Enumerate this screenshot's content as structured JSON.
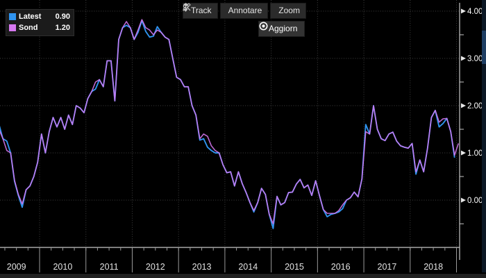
{
  "toolbar": {
    "buttons": [
      {
        "id": "track",
        "label": "Track"
      },
      {
        "id": "annotate",
        "label": "Annotare"
      },
      {
        "id": "zoom",
        "label": "Zoom"
      }
    ],
    "refresh_label": "Aggiorn"
  },
  "legend": {
    "items": [
      {
        "label": "Latest",
        "value": "0.90",
        "color": "#2f94f0"
      },
      {
        "label": "Sond",
        "value": "1.20",
        "color": "#d678f0"
      }
    ]
  },
  "colors": {
    "background": "#000000",
    "grid": "#404040",
    "axis": "#c8c8c8",
    "tick_text": "#ffffff",
    "year_text": "#e2e2e2",
    "separator": "#9a9a9a",
    "latest_line": "#2f94f0",
    "sond_line": "#d678f0"
  },
  "chart_data": {
    "type": "line",
    "title": "",
    "xlabel": "",
    "ylabel": "",
    "legend_position": "top-left",
    "grid": "dotted",
    "x_start_year": 2009,
    "x_tick_labels": [
      "2009",
      "2010",
      "2011",
      "2012",
      "2013",
      "2014",
      "2015",
      "2016",
      "2017",
      "2018"
    ],
    "y_ticks": [
      {
        "value": 4,
        "label": "4.00"
      },
      {
        "value": 3,
        "label": "3.00"
      },
      {
        "value": 2,
        "label": "2.00"
      },
      {
        "value": 1,
        "label": "1.00"
      },
      {
        "value": 0,
        "label": "0.00"
      }
    ],
    "y_minor_values": [
      3.5,
      2.5,
      1.5,
      0.5,
      -0.5
    ],
    "ylim": [
      -1.0,
      4.24
    ],
    "frequency": "monthly",
    "series": [
      {
        "name": "Latest",
        "color": "#2f94f0",
        "start": "2009-01",
        "values": [
          1.65,
          1.6,
          1.3,
          1.25,
          1.0,
          0.4,
          0.1,
          -0.15,
          0.22,
          0.3,
          0.5,
          0.8,
          1.4,
          1.0,
          1.45,
          1.75,
          1.55,
          1.75,
          1.5,
          1.8,
          1.6,
          2.0,
          1.95,
          1.85,
          2.15,
          2.3,
          2.35,
          2.55,
          2.4,
          2.95,
          2.95,
          2.1,
          3.4,
          3.65,
          3.7,
          3.65,
          3.4,
          3.55,
          3.8,
          3.57,
          3.45,
          3.47,
          3.67,
          3.55,
          3.45,
          3.4,
          3.0,
          2.6,
          2.55,
          2.4,
          2.4,
          2.0,
          1.8,
          1.27,
          1.3,
          1.12,
          1.05,
          1.0,
          1.0,
          0.75,
          0.58,
          0.6,
          0.3,
          0.6,
          0.35,
          0.16,
          -0.05,
          -0.25,
          -0.05,
          0.25,
          0.12,
          -0.3,
          -0.6,
          0.08,
          -0.1,
          -0.05,
          0.16,
          0.17,
          0.34,
          0.44,
          0.26,
          0.32,
          0.1,
          0.41,
          0.1,
          -0.2,
          -0.35,
          -0.3,
          -0.28,
          -0.25,
          -0.18,
          0.0,
          0.05,
          0.17,
          0.07,
          0.45,
          1.6,
          1.4,
          2.0,
          1.5,
          1.3,
          1.26,
          1.4,
          1.44,
          1.25,
          1.15,
          1.12,
          1.1,
          1.2,
          0.55,
          0.85,
          0.6,
          1.1,
          1.75,
          1.9,
          1.55,
          1.62,
          1.73,
          1.45,
          0.9
        ]
      },
      {
        "name": "Sond",
        "color": "#d678f0",
        "start": "2009-01",
        "values": [
          1.6,
          1.5,
          1.3,
          1.05,
          1.0,
          0.42,
          0.12,
          -0.08,
          0.22,
          0.3,
          0.5,
          0.8,
          1.4,
          1.0,
          1.45,
          1.75,
          1.55,
          1.75,
          1.5,
          1.8,
          1.6,
          2.0,
          1.95,
          1.85,
          2.15,
          2.3,
          2.5,
          2.55,
          2.4,
          2.95,
          2.95,
          2.1,
          3.4,
          3.65,
          3.78,
          3.65,
          3.4,
          3.6,
          3.82,
          3.65,
          3.6,
          3.5,
          3.6,
          3.55,
          3.45,
          3.4,
          3.0,
          2.6,
          2.55,
          2.4,
          2.4,
          2.0,
          1.8,
          1.3,
          1.4,
          1.35,
          1.15,
          1.05,
          1.0,
          0.75,
          0.58,
          0.6,
          0.3,
          0.6,
          0.35,
          0.16,
          -0.05,
          -0.22,
          -0.05,
          0.25,
          0.12,
          -0.3,
          -0.5,
          0.08,
          -0.1,
          -0.05,
          0.16,
          0.17,
          0.34,
          0.44,
          0.26,
          0.32,
          0.1,
          0.41,
          0.1,
          -0.2,
          -0.28,
          -0.28,
          -0.28,
          -0.22,
          -0.1,
          0.0,
          0.05,
          0.17,
          0.07,
          0.45,
          1.45,
          1.4,
          2.0,
          1.5,
          1.3,
          1.26,
          1.4,
          1.44,
          1.25,
          1.15,
          1.12,
          1.1,
          1.2,
          0.6,
          0.85,
          0.6,
          1.1,
          1.75,
          1.9,
          1.65,
          1.72,
          1.73,
          1.45,
          0.95,
          1.2
        ]
      }
    ]
  }
}
